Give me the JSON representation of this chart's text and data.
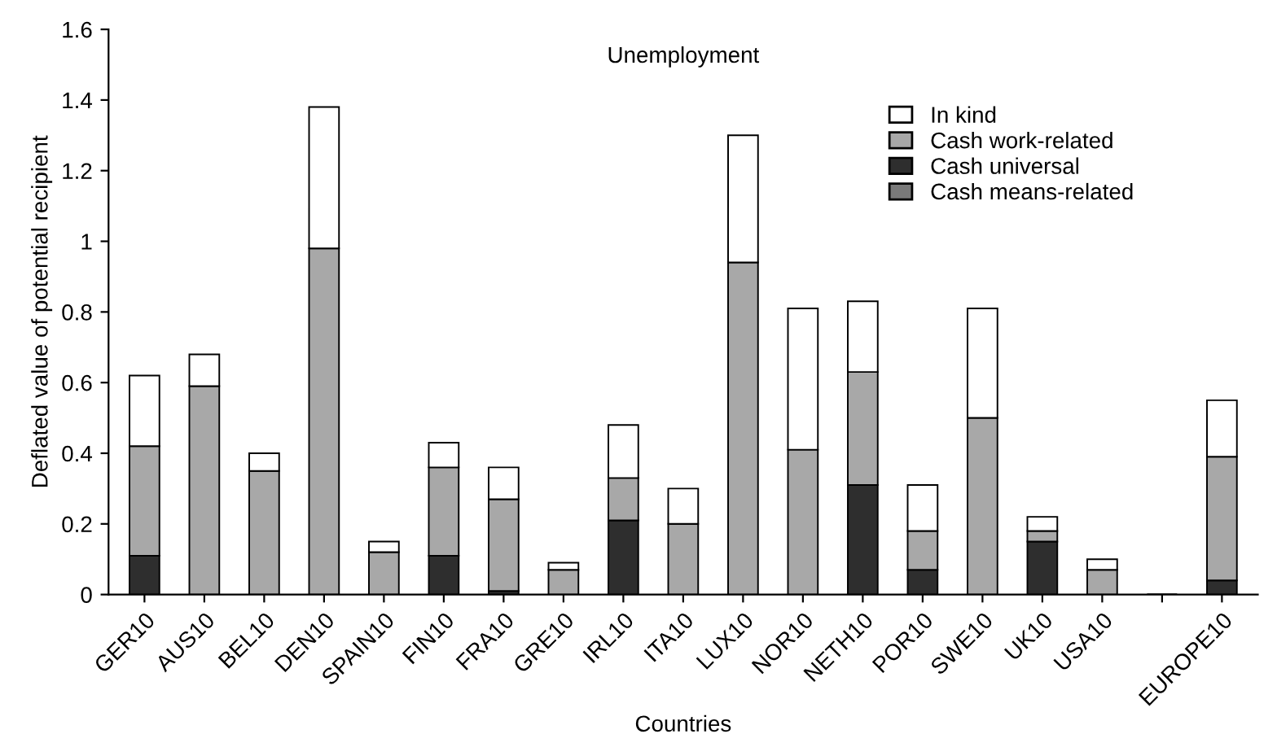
{
  "chart_data": {
    "type": "bar",
    "stacked": true,
    "title": "Unemployment",
    "xlabel": "Countries",
    "ylabel": "Deflated value of potential recipient",
    "categories": [
      "GER10",
      "AUS10",
      "BEL10",
      "DEN10",
      "SPAIN10",
      "FIN10",
      "FRA10",
      "GRE10",
      "IRL10",
      "ITA10",
      "LUX10",
      "NOR10",
      "NETH10",
      "POR10",
      "SWE10",
      "UK10",
      "USA10",
      null,
      "EUROPE10"
    ],
    "series": [
      {
        "name": "Cash means-related",
        "color": "#7a7a7a",
        "values": [
          0,
          0,
          0,
          0,
          0,
          0,
          0,
          0,
          0,
          0,
          0,
          0,
          0,
          0,
          0,
          0,
          0,
          0,
          0
        ]
      },
      {
        "name": "Cash universal",
        "color": "#2e2e2e",
        "values": [
          0.11,
          0,
          0,
          0,
          0,
          0.11,
          0.01,
          0,
          0.21,
          0,
          0,
          0,
          0.31,
          0.07,
          0,
          0.15,
          0,
          0,
          0.04
        ]
      },
      {
        "name": "Cash work-related",
        "color": "#a8a8a8",
        "values": [
          0.31,
          0.59,
          0.35,
          0.98,
          0.12,
          0.25,
          0.26,
          0.07,
          0.12,
          0.2,
          0.94,
          0.41,
          0.32,
          0.11,
          0.5,
          0.03,
          0.07,
          0,
          0.35
        ]
      },
      {
        "name": "In kind",
        "color": "#ffffff",
        "values": [
          0.2,
          0.09,
          0.05,
          0.4,
          0.03,
          0.07,
          0.09,
          0.02,
          0.15,
          0.1,
          0.36,
          0.4,
          0.2,
          0.13,
          0.31,
          0.04,
          0.03,
          0,
          0.16
        ]
      }
    ],
    "ylim": [
      0,
      1.6
    ],
    "yticks": [
      0,
      0.2,
      0.4,
      0.6,
      0.8,
      1,
      1.2,
      1.4,
      1.6
    ],
    "legend": "top right",
    "grid": false
  }
}
